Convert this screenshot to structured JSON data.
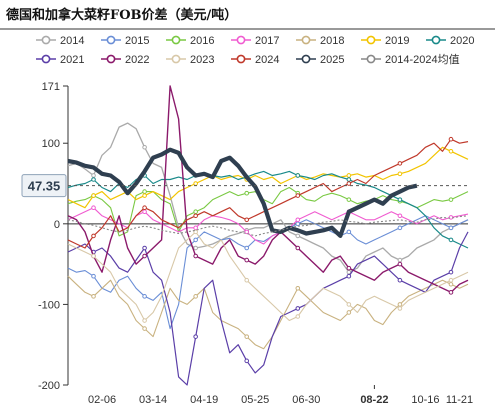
{
  "chart_data": {
    "type": "line",
    "title": "德国和加拿大菜籽FOB价差（美元/吨）",
    "xlabel": "",
    "ylabel": "",
    "y_ticks": [
      171,
      100,
      0,
      -100,
      -200
    ],
    "ylim": [
      -200,
      171
    ],
    "x_ticks": [
      "02-06",
      "03-14",
      "04-19",
      "05-25",
      "06-30",
      "08-22",
      "10-16",
      "11-21"
    ],
    "highlight_x": "08-22",
    "highlight_value": "47.35",
    "grid": false,
    "legend_position": "top",
    "n_points": 48,
    "series": [
      {
        "name": "2014",
        "color": "#aaaaaa",
        "width": 1.3,
        "marker": true,
        "values": [
          72,
          75,
          68,
          60,
          85,
          95,
          120,
          125,
          118,
          95,
          75,
          70,
          35,
          -5,
          -25,
          -30,
          -28,
          -25,
          -20,
          -15,
          -12,
          -8,
          -5,
          -5,
          0,
          5,
          -10,
          -15,
          -20,
          -25,
          -30,
          -40,
          -45,
          -60,
          -55,
          -40,
          -35,
          -30,
          -40,
          -45,
          -40,
          -30,
          -25,
          -20,
          -10,
          -5,
          0,
          5
        ]
      },
      {
        "name": "2015",
        "color": "#6a8ed6",
        "width": 1.1,
        "marker": true,
        "values": [
          -55,
          -60,
          -58,
          -65,
          -80,
          -85,
          -70,
          -65,
          -80,
          -90,
          -95,
          -85,
          -130,
          -100,
          -30,
          -20,
          -10,
          -15,
          -20,
          -18,
          -25,
          -30,
          -20,
          -22,
          -15,
          -10,
          -5,
          0,
          5,
          0,
          -5,
          -10,
          -15,
          -10,
          -20,
          -25,
          -20,
          -15,
          -10,
          -5,
          0,
          5,
          10,
          5,
          0,
          -5,
          0,
          5
        ]
      },
      {
        "name": "2016",
        "color": "#7ac943",
        "width": 1.1,
        "marker": true,
        "values": [
          25,
          28,
          30,
          35,
          30,
          20,
          -15,
          -10,
          35,
          40,
          40,
          30,
          25,
          -10,
          10,
          15,
          20,
          30,
          35,
          40,
          35,
          38,
          40,
          30,
          25,
          40,
          45,
          38,
          30,
          28,
          35,
          38,
          35,
          30,
          25,
          28,
          30,
          35,
          30,
          28,
          25,
          20,
          25,
          30,
          28,
          30,
          35,
          40
        ]
      },
      {
        "name": "2017",
        "color": "#f05cd0",
        "width": 1.1,
        "marker": true,
        "values": [
          5,
          10,
          15,
          20,
          10,
          5,
          0,
          -5,
          10,
          15,
          5,
          0,
          -5,
          -10,
          -5,
          -5,
          5,
          10,
          8,
          5,
          0,
          -10,
          -20,
          -25,
          -15,
          -10,
          -5,
          5,
          10,
          15,
          10,
          5,
          10,
          15,
          10,
          5,
          5,
          10,
          15,
          10,
          5,
          0,
          5,
          10,
          5,
          8,
          10,
          12
        ]
      },
      {
        "name": "2018",
        "color": "#c9b280",
        "width": 1.1,
        "marker": true,
        "values": [
          -65,
          -75,
          -85,
          -90,
          -80,
          -70,
          -90,
          -100,
          -120,
          -130,
          -140,
          -110,
          -80,
          -95,
          -100,
          -90,
          -80,
          -110,
          -120,
          -125,
          -130,
          -140,
          -150,
          -155,
          -140,
          -120,
          -100,
          -80,
          -90,
          -100,
          -110,
          -115,
          -120,
          -110,
          -100,
          -105,
          -120,
          -125,
          -110,
          -100,
          -90,
          -85,
          -80,
          -75,
          -70,
          -75,
          -80,
          -75
        ]
      },
      {
        "name": "2019",
        "color": "#f2c400",
        "width": 1.2,
        "marker": true,
        "values": [
          30,
          25,
          20,
          35,
          40,
          30,
          35,
          40,
          30,
          35,
          40,
          35,
          30,
          40,
          45,
          50,
          55,
          60,
          55,
          58,
          60,
          55,
          60,
          55,
          58,
          50,
          55,
          60,
          55,
          58,
          62,
          60,
          58,
          60,
          62,
          58,
          60,
          55,
          60,
          62,
          65,
          70,
          75,
          85,
          95,
          90,
          85,
          80
        ]
      },
      {
        "name": "2020",
        "color": "#1a8a8a",
        "width": 1.2,
        "marker": true,
        "values": [
          45,
          48,
          50,
          55,
          45,
          40,
          50,
          45,
          55,
          60,
          50,
          55,
          55,
          58,
          55,
          60,
          62,
          60,
          58,
          60,
          55,
          58,
          62,
          65,
          60,
          62,
          65,
          60,
          58,
          55,
          60,
          62,
          58,
          55,
          50,
          48,
          45,
          40,
          35,
          30,
          25,
          20,
          10,
          -5,
          -15,
          -20,
          -25,
          -30
        ]
      },
      {
        "name": "2021",
        "color": "#5b3fa8",
        "width": 1.2,
        "marker": true,
        "values": [
          -35,
          -30,
          -25,
          -35,
          -30,
          -40,
          -55,
          -60,
          -45,
          -30,
          -60,
          -70,
          -110,
          -190,
          -200,
          -140,
          -80,
          -70,
          -120,
          -160,
          -150,
          -170,
          -185,
          -175,
          -140,
          -115,
          -110,
          -105,
          -100,
          -90,
          -80,
          -75,
          -70,
          -65,
          -50,
          -45,
          -40,
          -50,
          -60,
          -70,
          -75,
          -80,
          -85,
          -70,
          -65,
          -60,
          -30,
          -10
        ]
      },
      {
        "name": "2022",
        "color": "#8b1a6b",
        "width": 1.4,
        "marker": true,
        "values": [
          10,
          5,
          -10,
          -40,
          -60,
          -20,
          10,
          -30,
          -50,
          -40,
          -30,
          -20,
          171,
          130,
          -10,
          -40,
          -45,
          -50,
          -30,
          -20,
          -40,
          -45,
          -50,
          -40,
          -20,
          -10,
          -20,
          -30,
          -40,
          -50,
          -60,
          -45,
          -40,
          -55,
          -60,
          -65,
          -70,
          -60,
          -55,
          -50,
          -60,
          -65,
          -70,
          -75,
          -80,
          -85,
          -75,
          -70
        ]
      },
      {
        "name": "2023",
        "color": "#d8c8a8",
        "width": 1.1,
        "marker": true,
        "values": [
          -25,
          -30,
          -35,
          -40,
          -50,
          -60,
          -80,
          -90,
          -100,
          -120,
          -110,
          -90,
          -60,
          -30,
          -20,
          -10,
          -25,
          -30,
          -20,
          -40,
          -55,
          -70,
          -80,
          -90,
          -100,
          -110,
          -120,
          -115,
          -100,
          -90,
          -80,
          -85,
          -90,
          -100,
          -110,
          -95,
          -90,
          -95,
          -100,
          -105,
          -95,
          -90,
          -85,
          -80,
          -75,
          -70,
          -65,
          -60
        ]
      },
      {
        "name": "2024",
        "color": "#c0392b",
        "width": 1.2,
        "marker": true,
        "values": [
          -20,
          -25,
          -30,
          -15,
          -5,
          10,
          -10,
          -5,
          10,
          20,
          15,
          5,
          0,
          -5,
          5,
          10,
          15,
          10,
          15,
          20,
          10,
          5,
          10,
          15,
          20,
          25,
          30,
          35,
          40,
          45,
          50,
          40,
          45,
          50,
          55,
          50,
          60,
          65,
          70,
          75,
          80,
          85,
          95,
          100,
          90,
          105,
          100,
          102
        ]
      },
      {
        "name": "2025",
        "color": "#2f3f50",
        "width": 4.2,
        "marker": false,
        "values": [
          78,
          76,
          72,
          70,
          62,
          60,
          52,
          38,
          50,
          65,
          82,
          86,
          92,
          88,
          70,
          60,
          62,
          58,
          78,
          82,
          72,
          58,
          46,
          25,
          -8,
          -10,
          -5,
          -8,
          -12,
          -10,
          -8,
          -5,
          -15,
          15,
          20,
          25,
          30,
          25,
          35,
          40,
          45,
          47.35,
          null,
          null,
          null,
          null,
          null,
          null
        ]
      },
      {
        "name": "2014-2024均值",
        "color": "#888888",
        "width": 1.1,
        "marker": false,
        "dashed": true,
        "values": [
          5,
          3,
          0,
          -2,
          -5,
          -8,
          -10,
          -8,
          -5,
          -3,
          -5,
          -8,
          -10,
          -12,
          -10,
          -8,
          -5,
          -3,
          -5,
          -8,
          -10,
          -12,
          -15,
          -12,
          -10,
          -8,
          -5,
          -3,
          -2,
          0,
          2,
          3,
          5,
          3,
          2,
          0,
          2,
          3,
          4,
          5,
          3,
          2,
          5,
          6,
          8,
          7,
          9,
          10
        ]
      }
    ]
  }
}
